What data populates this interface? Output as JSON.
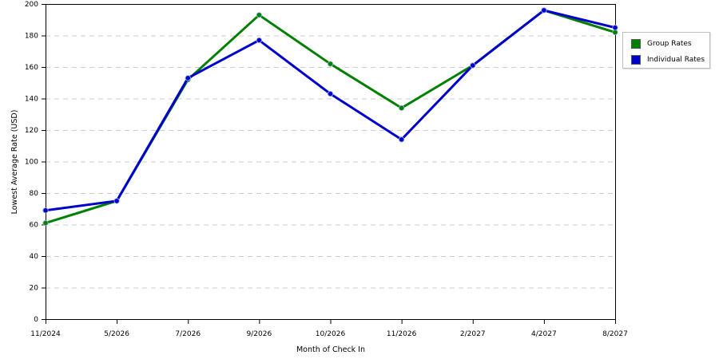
{
  "chart_data": {
    "type": "line",
    "xlabel": "Month of Check In",
    "ylabel": "Lowest Average Rate (USD)",
    "categories": [
      "11/2024",
      "5/2026",
      "7/2026",
      "9/2026",
      "10/2026",
      "11/2026",
      "2/2027",
      "4/2027",
      "8/2027"
    ],
    "ylim": [
      0,
      200
    ],
    "yticks": [
      0,
      20,
      40,
      60,
      80,
      100,
      120,
      140,
      160,
      180,
      200
    ],
    "ytick_labels": [
      "0",
      "20",
      "40",
      "60",
      "80",
      "100",
      "120",
      "140",
      "160",
      "180",
      "200"
    ],
    "grid": true,
    "legend_position": "right",
    "series": [
      {
        "name": "Group Rates",
        "color": "#008000",
        "values": [
          61,
          75,
          152,
          193,
          162,
          134,
          161,
          196,
          182
        ]
      },
      {
        "name": "Individual Rates",
        "color": "#0000cc",
        "values": [
          69,
          75,
          153,
          177,
          143,
          114,
          161,
          196,
          185
        ]
      }
    ]
  }
}
